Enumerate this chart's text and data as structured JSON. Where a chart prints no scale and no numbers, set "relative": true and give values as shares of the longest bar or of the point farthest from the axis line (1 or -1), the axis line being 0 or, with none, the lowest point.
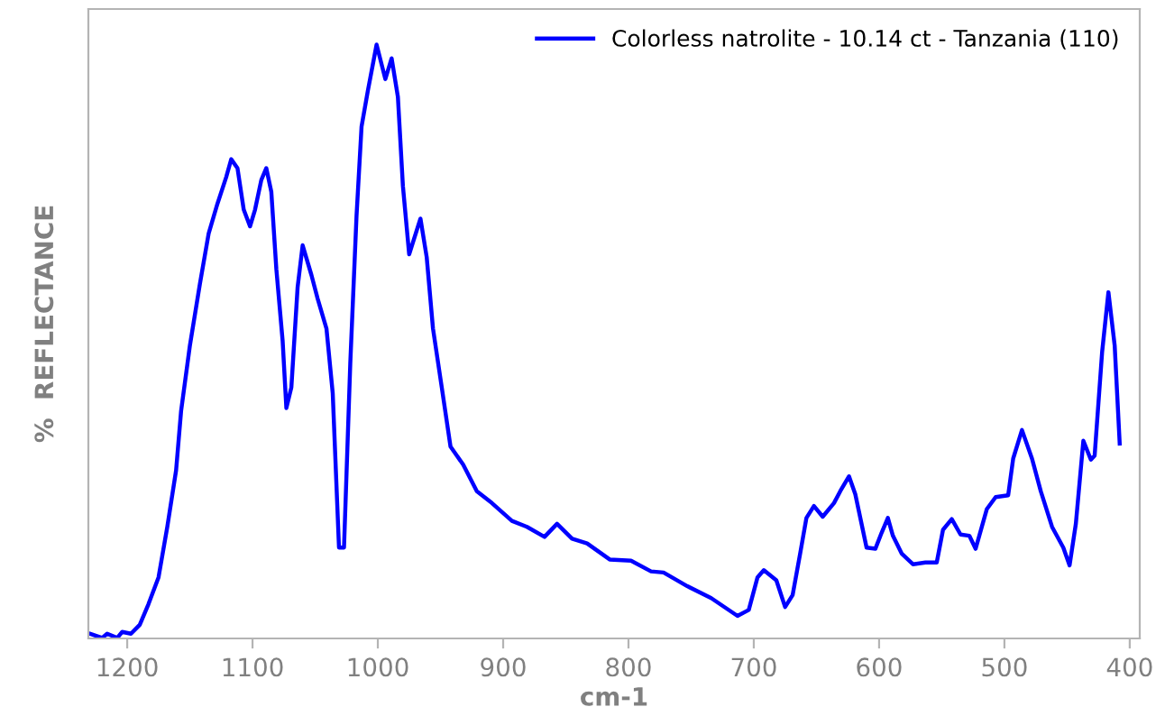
{
  "chart_data": {
    "type": "line",
    "xlabel": "cm-1",
    "ylabel": "%  REFLECTANCE",
    "relative": true,
    "legend": "top right",
    "grid": false,
    "xlim": [
      1231,
      392
    ],
    "xticks": [
      1200,
      1100,
      1000,
      900,
      800,
      700,
      600,
      500,
      400
    ],
    "series": [
      {
        "name": "Colorless natrolite - 10.14 ct - Tanzania (110)",
        "color": "#0000ff",
        "x": [
          1230,
          1220,
          1216,
          1208,
          1204,
          1197,
          1190,
          1183,
          1175,
          1168,
          1161,
          1157,
          1150,
          1142,
          1135,
          1128,
          1121,
          1117,
          1112,
          1107,
          1102,
          1098,
          1093,
          1089,
          1085,
          1081,
          1076,
          1073,
          1069,
          1064,
          1060,
          1053,
          1048,
          1041,
          1036,
          1031,
          1027,
          1022,
          1017,
          1013,
          1008,
          1001,
          994,
          989,
          984,
          980,
          975,
          966,
          961,
          956,
          949,
          942,
          932,
          921,
          909,
          893,
          881,
          867,
          857,
          845,
          833,
          815,
          798,
          782,
          772,
          753,
          734,
          713,
          704,
          697,
          692,
          682,
          675,
          669,
          663,
          658,
          652,
          645,
          636,
          631,
          624,
          619,
          610,
          603,
          598,
          593,
          589,
          582,
          573,
          563,
          554,
          549,
          542,
          535,
          528,
          523,
          514,
          507,
          497,
          493,
          486,
          478,
          471,
          462,
          453,
          448,
          443,
          437,
          431,
          428,
          422,
          417,
          412,
          408
        ],
        "values": [
          0.008,
          0.001,
          0.008,
          0.001,
          0.011,
          0.008,
          0.023,
          0.058,
          0.103,
          0.188,
          0.283,
          0.383,
          0.493,
          0.597,
          0.682,
          0.732,
          0.777,
          0.807,
          0.792,
          0.722,
          0.694,
          0.722,
          0.772,
          0.792,
          0.752,
          0.622,
          0.502,
          0.388,
          0.423,
          0.592,
          0.662,
          0.612,
          0.572,
          0.522,
          0.413,
          0.153,
          0.153,
          0.463,
          0.712,
          0.862,
          0.922,
          1.0,
          0.942,
          0.977,
          0.912,
          0.762,
          0.647,
          0.707,
          0.642,
          0.522,
          0.423,
          0.323,
          0.293,
          0.248,
          0.228,
          0.198,
          0.188,
          0.171,
          0.193,
          0.168,
          0.16,
          0.133,
          0.131,
          0.113,
          0.111,
          0.088,
          0.068,
          0.038,
          0.048,
          0.103,
          0.115,
          0.098,
          0.053,
          0.073,
          0.143,
          0.203,
          0.223,
          0.205,
          0.228,
          0.248,
          0.273,
          0.243,
          0.153,
          0.151,
          0.178,
          0.203,
          0.173,
          0.143,
          0.125,
          0.128,
          0.128,
          0.183,
          0.201,
          0.175,
          0.173,
          0.151,
          0.218,
          0.238,
          0.241,
          0.303,
          0.351,
          0.303,
          0.248,
          0.188,
          0.153,
          0.123,
          0.193,
          0.333,
          0.301,
          0.308,
          0.483,
          0.583,
          0.493,
          0.328
        ]
      }
    ]
  }
}
